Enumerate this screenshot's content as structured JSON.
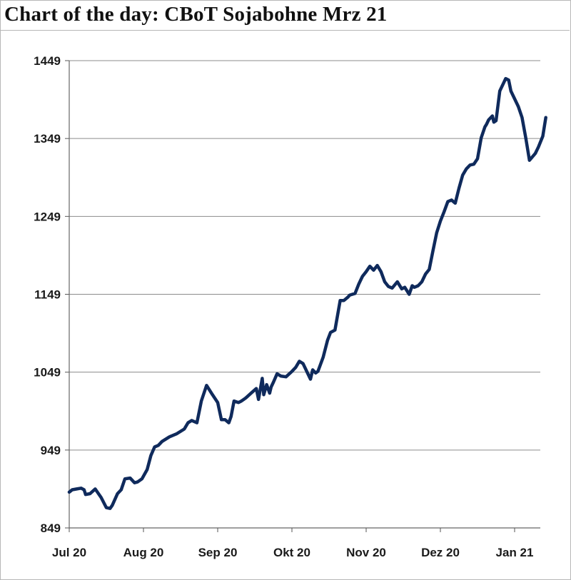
{
  "title": "Chart of the day: CBoT Sojabohne Mrz 21",
  "chart_data": {
    "type": "line",
    "title": "Chart of the day: CBoT Sojabohne Mrz 21",
    "xlabel": "",
    "ylabel": "",
    "ylim": [
      849,
      1449
    ],
    "yticks": [
      849,
      949,
      1049,
      1149,
      1249,
      1349,
      1449
    ],
    "xlim": [
      0,
      6.42
    ],
    "xticks": [
      {
        "label": "Jul 20",
        "pos": 0
      },
      {
        "label": "Aug 20",
        "pos": 1
      },
      {
        "label": "Sep 20",
        "pos": 2
      },
      {
        "label": "Okt 20",
        "pos": 3
      },
      {
        "label": "Nov 20",
        "pos": 4
      },
      {
        "label": "Dez 20",
        "pos": 5
      },
      {
        "label": "Jan 21",
        "pos": 6
      }
    ],
    "grid": true,
    "series": [
      {
        "name": "CBoT Sojabohne Mrz 21",
        "color": "#0f2a5c",
        "x": [
          0,
          0.04,
          0.1,
          0.16,
          0.2,
          0.22,
          0.28,
          0.35,
          0.43,
          0.5,
          0.55,
          0.58,
          0.65,
          0.7,
          0.75,
          0.82,
          0.88,
          0.92,
          0.98,
          1.05,
          1.1,
          1.15,
          1.2,
          1.25,
          1.35,
          1.45,
          1.55,
          1.6,
          1.65,
          1.72,
          1.78,
          1.85,
          1.93,
          2.0,
          2.05,
          2.1,
          2.15,
          2.18,
          2.22,
          2.28,
          2.32,
          2.35,
          2.38,
          2.45,
          2.52,
          2.55,
          2.6,
          2.62,
          2.66,
          2.7,
          2.72,
          2.75,
          2.8,
          2.85,
          2.92,
          3.0,
          3.05,
          3.1,
          3.15,
          3.2,
          3.25,
          3.28,
          3.32,
          3.35,
          3.42,
          3.48,
          3.52,
          3.58,
          3.65,
          3.7,
          3.75,
          3.78,
          3.85,
          3.9,
          3.95,
          4.0,
          4.05,
          4.1,
          4.15,
          4.2,
          4.25,
          4.3,
          4.35,
          4.42,
          4.48,
          4.52,
          4.58,
          4.62,
          4.65,
          4.7,
          4.75,
          4.8,
          4.85,
          4.9,
          4.95,
          5.0,
          5.05,
          5.1,
          5.15,
          5.2,
          5.25,
          5.3,
          5.35,
          5.4,
          5.45,
          5.5,
          5.55,
          5.6,
          5.62,
          5.65,
          5.7,
          5.72,
          5.75,
          5.8,
          5.85,
          5.88,
          5.92,
          5.95,
          6.0,
          6.05,
          6.1,
          6.15,
          6.2,
          6.28,
          6.32,
          6.38,
          6.42
        ],
        "values": [
          895,
          898,
          899,
          900,
          898,
          892,
          893,
          899,
          888,
          875,
          874,
          878,
          893,
          898,
          912,
          913,
          907,
          908,
          912,
          924,
          942,
          953,
          955,
          960,
          966,
          970,
          976,
          984,
          987,
          984,
          1012,
          1032,
          1020,
          1010,
          988,
          988,
          984,
          992,
          1012,
          1010,
          1012,
          1014,
          1016,
          1022,
          1028,
          1014,
          1041,
          1020,
          1033,
          1022,
          1030,
          1036,
          1047,
          1044,
          1043,
          1050,
          1055,
          1063,
          1060,
          1050,
          1040,
          1052,
          1048,
          1050,
          1068,
          1090,
          1100,
          1103,
          1141,
          1141,
          1145,
          1148,
          1150,
          1162,
          1172,
          1178,
          1185,
          1180,
          1186,
          1178,
          1165,
          1159,
          1157,
          1165,
          1156,
          1158,
          1149,
          1160,
          1158,
          1160,
          1165,
          1175,
          1181,
          1205,
          1228,
          1243,
          1255,
          1268,
          1270,
          1266,
          1285,
          1302,
          1310,
          1315,
          1316,
          1323,
          1350,
          1364,
          1367,
          1373,
          1378,
          1370,
          1372,
          1410,
          1420,
          1426,
          1424,
          1410,
          1400,
          1390,
          1376,
          1350,
          1321,
          1330,
          1338,
          1352,
          1376
        ]
      }
    ]
  }
}
